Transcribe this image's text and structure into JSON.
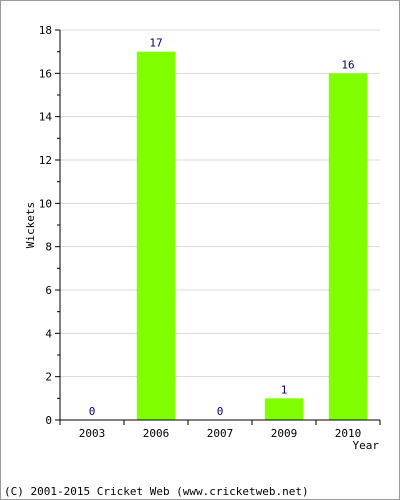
{
  "chart_data": {
    "type": "bar",
    "categories": [
      "2003",
      "2006",
      "2007",
      "2009",
      "2010"
    ],
    "values": [
      0,
      17,
      0,
      1,
      16
    ],
    "ylabel": "Wickets",
    "xlabel": "Year",
    "ylim": [
      0,
      18
    ],
    "yticks": [
      "0",
      "2",
      "4",
      "6",
      "8",
      "10",
      "12",
      "14",
      "16",
      "18"
    ],
    "grid": true,
    "bar_color": "#80ff00",
    "data_label_color": "#000080"
  },
  "footer": {
    "copyright": "(C) 2001-2015 Cricket Web (www.cricketweb.net)"
  }
}
